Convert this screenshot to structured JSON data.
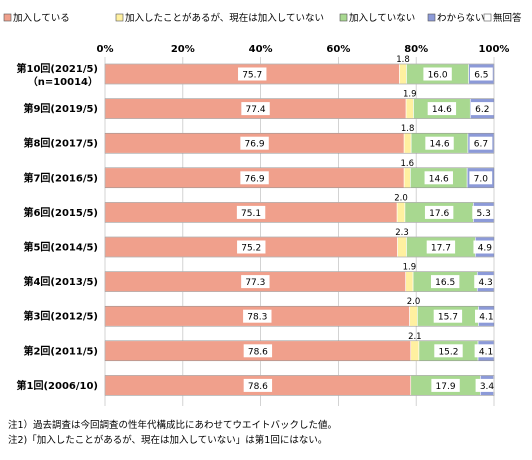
{
  "chart_data": {
    "type": "bar",
    "orientation": "horizontal",
    "stacked": true,
    "percent_stacked": true,
    "xlim": [
      0,
      100
    ],
    "x_ticks": [
      "0%",
      "20%",
      "40%",
      "60%",
      "80%",
      "100%"
    ],
    "legend_position": "top",
    "grid": true,
    "categories": [
      [
        "第10回(2021/5)",
        "（n=10014）"
      ],
      [
        "第9回(2019/5)"
      ],
      [
        "第8回(2017/5)"
      ],
      [
        "第7回(2016/5)"
      ],
      [
        "第6回(2015/5)"
      ],
      [
        "第5回(2014/5)"
      ],
      [
        "第4回(2013/5)"
      ],
      [
        "第3回(2012/5)"
      ],
      [
        "第2回(2011/5)"
      ],
      [
        "第1回(2006/10)"
      ]
    ],
    "series": [
      {
        "name": "加入している",
        "color": "#F0A08C",
        "values": [
          75.7,
          77.4,
          76.9,
          76.9,
          75.1,
          75.2,
          77.3,
          78.3,
          78.6,
          78.6
        ],
        "labels": [
          "75.7",
          "77.4",
          "76.9",
          "76.9",
          "75.1",
          "75.2",
          "77.3",
          "78.3",
          "78.6",
          "78.6"
        ]
      },
      {
        "name": "加入したことがあるが、現在は加入していない",
        "color": "#FFF0A0",
        "values": [
          1.8,
          1.9,
          1.8,
          1.6,
          2.0,
          2.3,
          1.9,
          2.0,
          2.1,
          0
        ],
        "labels": [
          "1.8",
          "1.9",
          "1.8",
          "1.6",
          "2.0",
          "2.3",
          "1.9",
          "2.0",
          "2.1",
          ""
        ]
      },
      {
        "name": "加入していない",
        "color": "#A8D890",
        "values": [
          16.0,
          14.6,
          14.6,
          14.6,
          17.6,
          17.7,
          16.5,
          15.7,
          15.2,
          17.9
        ],
        "labels": [
          "16.0",
          "14.6",
          "14.6",
          "14.6",
          "17.6",
          "17.7",
          "16.5",
          "15.7",
          "15.2",
          "17.9"
        ]
      },
      {
        "name": "わからない",
        "color": "#8C9AD8",
        "values": [
          6.5,
          6.2,
          6.7,
          7.0,
          5.3,
          4.9,
          4.3,
          4.1,
          4.1,
          3.4
        ],
        "labels": [
          "6.5",
          "6.2",
          "6.7",
          "7.0",
          "5.3",
          "4.9",
          "4.3",
          "4.1",
          "4.1",
          "3.4"
        ]
      },
      {
        "name": "無回答",
        "color": "#FFFFFF",
        "values": [
          0,
          0,
          0,
          0,
          0,
          0,
          0,
          0,
          0,
          0
        ],
        "labels": [
          "",
          "",
          "",
          "",
          "",
          "",
          "",
          "",
          "",
          ""
        ]
      }
    ]
  },
  "notes": [
    "注1）過去調査は今回調査の性年代構成比にあわせてウエイトバックした値。",
    "注2)「加入したことがあるが、現在は加入していない」は第1回にはない。"
  ]
}
